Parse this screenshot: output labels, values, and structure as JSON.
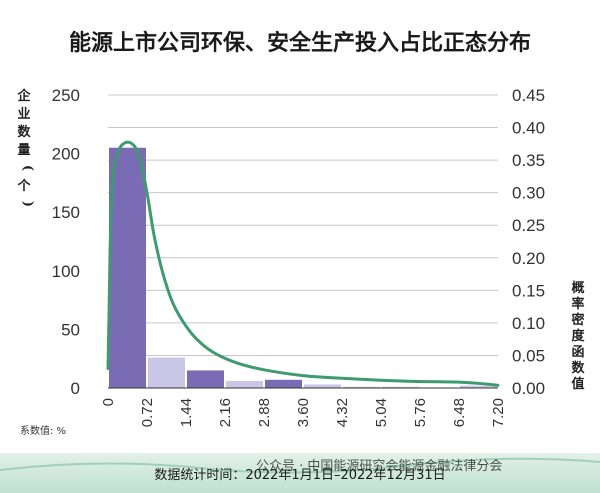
{
  "chart_data": {
    "type": "bar",
    "title": "能源上市公司环保、安全生产投入占比正态分布",
    "ylabel": "企业数量(个)",
    "y2label": "概率密度函数值",
    "xlabel": "系数值: %",
    "ylim": [
      0,
      250
    ],
    "y2lim": [
      0,
      0.45
    ],
    "yticks": [
      0,
      50,
      100,
      150,
      200,
      250
    ],
    "y2ticks": [
      "0.00",
      "0.05",
      "0.10",
      "0.15",
      "0.20",
      "0.25",
      "0.30",
      "0.35",
      "0.40",
      "0.45"
    ],
    "xticks": [
      "0",
      "0.72",
      "1.44",
      "2.16",
      "2.88",
      "3.60",
      "4.32",
      "5.04",
      "5.76",
      "6.48",
      "7.20"
    ],
    "bins": [
      {
        "from": 0,
        "to": 0.72,
        "value": 205,
        "color": "#7a6bb5"
      },
      {
        "from": 0.72,
        "to": 1.44,
        "value": 26,
        "color": "#c9c6e6"
      },
      {
        "from": 1.44,
        "to": 2.16,
        "value": 15,
        "color": "#7a6bb5"
      },
      {
        "from": 2.16,
        "to": 2.88,
        "value": 6,
        "color": "#c9c6e6"
      },
      {
        "from": 2.88,
        "to": 3.6,
        "value": 7,
        "color": "#7a6bb5"
      },
      {
        "from": 3.6,
        "to": 4.32,
        "value": 3,
        "color": "#c9c6e6"
      },
      {
        "from": 4.32,
        "to": 5.04,
        "value": 1,
        "color": "#c9c6e6"
      },
      {
        "from": 5.04,
        "to": 5.76,
        "value": 1,
        "color": "#c9c6e6"
      },
      {
        "from": 5.76,
        "to": 6.48,
        "value": 0,
        "color": "#c9c6e6"
      },
      {
        "from": 6.48,
        "to": 7.2,
        "value": 2,
        "color": "#c9c6e6"
      }
    ],
    "density_curve": {
      "color": "#3f9a70",
      "points": [
        [
          0.0,
          0.03
        ],
        [
          0.02,
          0.12
        ],
        [
          0.05,
          0.25
        ],
        [
          0.1,
          0.33
        ],
        [
          0.2,
          0.365
        ],
        [
          0.3,
          0.376
        ],
        [
          0.4,
          0.377
        ],
        [
          0.5,
          0.37
        ],
        [
          0.6,
          0.35
        ],
        [
          0.72,
          0.3
        ],
        [
          0.85,
          0.235
        ],
        [
          1.0,
          0.18
        ],
        [
          1.2,
          0.13
        ],
        [
          1.44,
          0.095
        ],
        [
          1.7,
          0.07
        ],
        [
          2.0,
          0.052
        ],
        [
          2.4,
          0.038
        ],
        [
          2.88,
          0.028
        ],
        [
          3.6,
          0.019
        ],
        [
          4.32,
          0.015
        ],
        [
          5.04,
          0.012
        ],
        [
          5.76,
          0.01
        ],
        [
          6.48,
          0.009
        ],
        [
          7.0,
          0.006
        ],
        [
          7.2,
          0.004
        ]
      ]
    },
    "grid": true,
    "legend": "none"
  },
  "footer": {
    "date_label": "数据统计时间：2022年1月1日–2022年12月31日",
    "watermark": "公众号 · 中国能源研究会能源金融法律分会"
  },
  "colors": {
    "bar_dark": "#7a6bb5",
    "bar_light": "#c9c6e6",
    "curve": "#3f9a70",
    "grid": "#c4c7cc"
  }
}
